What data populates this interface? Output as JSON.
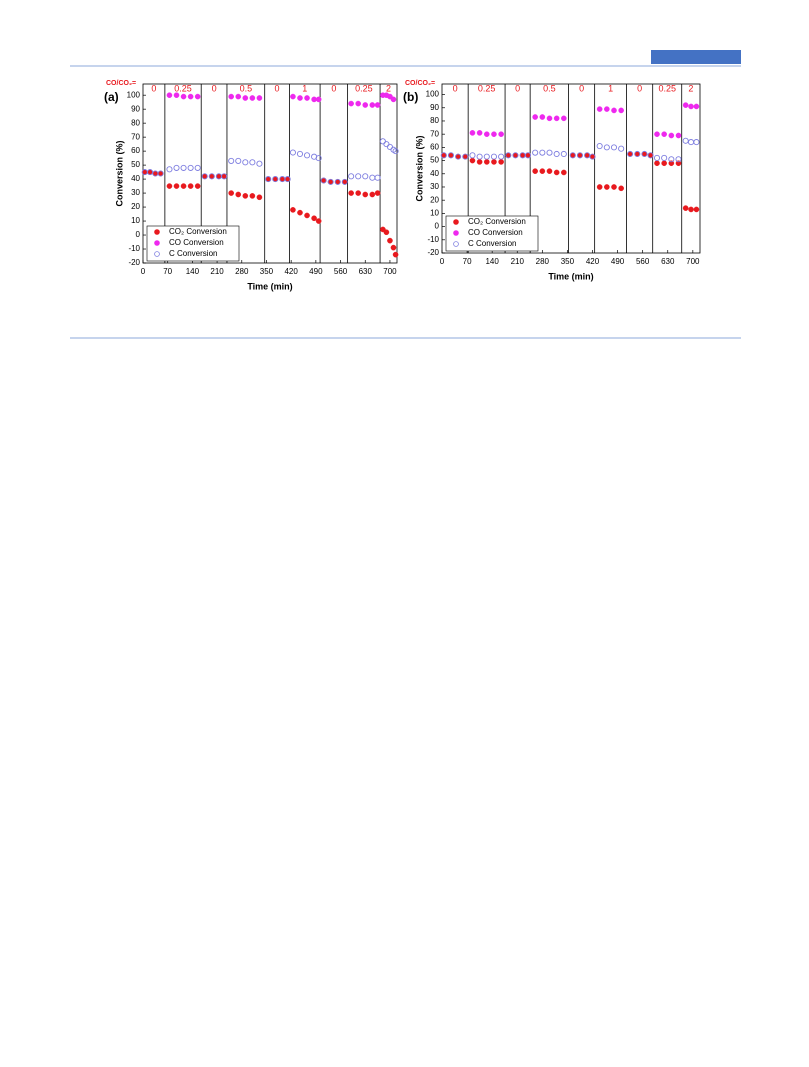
{
  "chart_data": [
    {
      "type": "scatter",
      "panel": "(a)",
      "region_title": "CO/CO₂=",
      "xlabel": "Time (min)",
      "ylabel": "Conversion (%)",
      "xlim": [
        0,
        720
      ],
      "xticks": [
        0,
        70,
        140,
        210,
        280,
        350,
        420,
        490,
        560,
        630,
        700
      ],
      "ylim": [
        -20,
        108
      ],
      "yticks": [
        -20,
        -10,
        0,
        10,
        20,
        30,
        40,
        50,
        60,
        70,
        80,
        90,
        100
      ],
      "legend": "lower left",
      "regions": [
        {
          "label": "0",
          "start": 0,
          "end": 62
        },
        {
          "label": "0.25",
          "start": 62,
          "end": 165
        },
        {
          "label": "0",
          "start": 165,
          "end": 238
        },
        {
          "label": "0.5",
          "start": 238,
          "end": 345
        },
        {
          "label": "0",
          "start": 345,
          "end": 415
        },
        {
          "label": "1",
          "start": 415,
          "end": 502
        },
        {
          "label": "0",
          "start": 502,
          "end": 580
        },
        {
          "label": "0.25",
          "start": 580,
          "end": 672
        },
        {
          "label": "2",
          "start": 672,
          "end": 720
        }
      ],
      "series": [
        {
          "name": "CO₂ Conversion",
          "color": "#e8191e",
          "marker": "filled",
          "x": [
            5,
            20,
            35,
            50,
            75,
            95,
            115,
            135,
            155,
            175,
            195,
            215,
            230,
            250,
            270,
            290,
            310,
            330,
            355,
            375,
            395,
            410,
            425,
            445,
            465,
            485,
            498,
            512,
            532,
            552,
            572,
            590,
            610,
            630,
            650,
            665,
            680,
            690,
            700,
            710,
            716
          ],
          "values": [
            45,
            45,
            44,
            44,
            35,
            35,
            35,
            35,
            35,
            42,
            42,
            42,
            42,
            30,
            29,
            28,
            28,
            27,
            40,
            40,
            40,
            40,
            18,
            16,
            14,
            12,
            10,
            39,
            38,
            38,
            38,
            30,
            30,
            29,
            29,
            30,
            4,
            2,
            -4,
            -9,
            -14
          ]
        },
        {
          "name": "CO Conversion",
          "color": "#ee28ee",
          "marker": "filled",
          "x": [
            75,
            95,
            115,
            135,
            155,
            250,
            270,
            290,
            310,
            330,
            425,
            445,
            465,
            485,
            498,
            590,
            610,
            630,
            650,
            665,
            680,
            690,
            700,
            710
          ],
          "values": [
            100,
            100,
            99,
            99,
            99,
            99,
            99,
            98,
            98,
            98,
            99,
            98,
            98,
            97,
            97,
            94,
            94,
            93,
            93,
            93,
            100,
            100,
            99,
            97
          ]
        },
        {
          "name": "C Conversion",
          "color": "#7f7fe0",
          "marker": "open",
          "x": [
            5,
            20,
            35,
            50,
            75,
            95,
            115,
            135,
            155,
            175,
            195,
            215,
            230,
            250,
            270,
            290,
            310,
            330,
            355,
            375,
            395,
            410,
            425,
            445,
            465,
            485,
            498,
            512,
            532,
            552,
            572,
            590,
            610,
            630,
            650,
            665,
            680,
            690,
            700,
            710,
            716
          ],
          "values": [
            45,
            45,
            44,
            44,
            47,
            48,
            48,
            48,
            48,
            42,
            42,
            42,
            42,
            53,
            53,
            52,
            52,
            51,
            40,
            40,
            40,
            40,
            59,
            58,
            57,
            56,
            55,
            39,
            38,
            38,
            38,
            42,
            42,
            42,
            41,
            41,
            67,
            65,
            63,
            61,
            60
          ]
        }
      ]
    },
    {
      "type": "scatter",
      "panel": "(b)",
      "region_title": "CO/CO₂=",
      "xlabel": "Time (min)",
      "ylabel": "Conversion (%)",
      "xlim": [
        0,
        720
      ],
      "xticks": [
        0,
        70,
        140,
        210,
        280,
        350,
        420,
        490,
        560,
        630,
        700
      ],
      "ylim": [
        -20,
        108
      ],
      "yticks": [
        -20,
        -10,
        0,
        10,
        20,
        30,
        40,
        50,
        60,
        70,
        80,
        90,
        100
      ],
      "legend": "lower left",
      "regions": [
        {
          "label": "0",
          "start": 0,
          "end": 73
        },
        {
          "label": "0.25",
          "start": 73,
          "end": 176
        },
        {
          "label": "0",
          "start": 176,
          "end": 246
        },
        {
          "label": "0.5",
          "start": 246,
          "end": 353
        },
        {
          "label": "0",
          "start": 353,
          "end": 426
        },
        {
          "label": "1",
          "start": 426,
          "end": 515
        },
        {
          "label": "0",
          "start": 515,
          "end": 588
        },
        {
          "label": "0.25",
          "start": 588,
          "end": 669
        },
        {
          "label": "2",
          "start": 669,
          "end": 720
        }
      ],
      "series": [
        {
          "name": "CO₂ Conversion",
          "color": "#e8191e",
          "marker": "filled",
          "x": [
            5,
            25,
            45,
            65,
            85,
            105,
            125,
            145,
            165,
            185,
            205,
            225,
            240,
            260,
            280,
            300,
            320,
            340,
            365,
            385,
            405,
            420,
            440,
            460,
            480,
            500,
            525,
            545,
            565,
            582,
            600,
            620,
            640,
            660,
            680,
            695,
            710
          ],
          "values": [
            54,
            54,
            53,
            53,
            50,
            49,
            49,
            49,
            49,
            54,
            54,
            54,
            54,
            42,
            42,
            42,
            41,
            41,
            54,
            54,
            54,
            53,
            30,
            30,
            30,
            29,
            55,
            55,
            55,
            54,
            48,
            48,
            48,
            48,
            14,
            13,
            13
          ]
        },
        {
          "name": "CO Conversion",
          "color": "#ee28ee",
          "marker": "filled",
          "x": [
            85,
            105,
            125,
            145,
            165,
            260,
            280,
            300,
            320,
            340,
            440,
            460,
            480,
            500,
            600,
            620,
            640,
            660,
            680,
            695,
            710
          ],
          "values": [
            71,
            71,
            70,
            70,
            70,
            83,
            83,
            82,
            82,
            82,
            89,
            89,
            88,
            88,
            70,
            70,
            69,
            69,
            92,
            91,
            91
          ]
        },
        {
          "name": "C Conversion",
          "color": "#7f7fe0",
          "marker": "open",
          "x": [
            5,
            25,
            45,
            65,
            85,
            105,
            125,
            145,
            165,
            185,
            205,
            225,
            240,
            260,
            280,
            300,
            320,
            340,
            365,
            385,
            405,
            420,
            440,
            460,
            480,
            500,
            525,
            545,
            565,
            582,
            600,
            620,
            640,
            660,
            680,
            695,
            710
          ],
          "values": [
            54,
            54,
            53,
            53,
            54,
            53,
            53,
            53,
            53,
            54,
            54,
            54,
            54,
            56,
            56,
            56,
            55,
            55,
            54,
            54,
            54,
            53,
            61,
            60,
            60,
            59,
            55,
            55,
            55,
            54,
            52,
            52,
            51,
            51,
            65,
            64,
            64
          ]
        }
      ]
    }
  ]
}
